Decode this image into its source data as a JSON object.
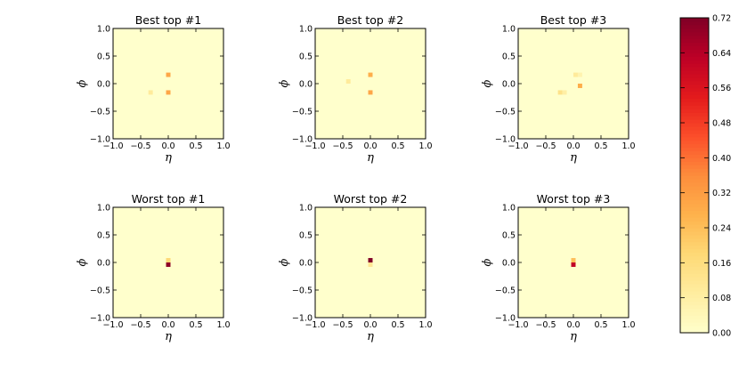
{
  "chart_data": {
    "type": "heatmap",
    "colormap": "YlOrRd",
    "colorbar": {
      "range": [
        0.0,
        0.72
      ],
      "ticks": [
        "0.00",
        "0.08",
        "0.16",
        "0.24",
        "0.32",
        "0.40",
        "0.48",
        "0.56",
        "0.64",
        "0.72"
      ]
    },
    "panels": [
      {
        "title": "Best top #1",
        "xlabel": "η",
        "ylabel": "ϕ",
        "xlim": [
          -1.0,
          1.0
        ],
        "ylim": [
          -1.0,
          1.0
        ],
        "xticks": [
          "−1.0",
          "−0.5",
          "0.0",
          "0.5",
          "1.0"
        ],
        "yticks": [
          "−1.0",
          "−0.5",
          "0.0",
          "0.5",
          "1.0"
        ],
        "cells": [
          {
            "eta": 0.0,
            "phi": 0.16,
            "value": 0.3
          },
          {
            "eta": 0.0,
            "phi": -0.16,
            "value": 0.3
          },
          {
            "eta": -0.32,
            "phi": -0.16,
            "value": 0.1
          }
        ]
      },
      {
        "title": "Best top #2",
        "xlabel": "η",
        "ylabel": "ϕ",
        "xlim": [
          -1.0,
          1.0
        ],
        "ylim": [
          -1.0,
          1.0
        ],
        "xticks": [
          "−1.0",
          "−0.5",
          "0.0",
          "0.5",
          "1.0"
        ],
        "yticks": [
          "−1.0",
          "−0.5",
          "0.0",
          "0.5",
          "1.0"
        ],
        "cells": [
          {
            "eta": 0.0,
            "phi": 0.16,
            "value": 0.28
          },
          {
            "eta": 0.0,
            "phi": -0.16,
            "value": 0.3
          },
          {
            "eta": -0.4,
            "phi": 0.04,
            "value": 0.1
          }
        ]
      },
      {
        "title": "Best top #3",
        "xlabel": "η",
        "ylabel": "ϕ",
        "xlim": [
          -1.0,
          1.0
        ],
        "ylim": [
          -1.0,
          1.0
        ],
        "xticks": [
          "−1.0",
          "−0.5",
          "0.0",
          "0.5",
          "1.0"
        ],
        "yticks": [
          "−1.0",
          "−0.5",
          "0.0",
          "0.5",
          "1.0"
        ],
        "cells": [
          {
            "eta": 0.04,
            "phi": 0.16,
            "value": 0.1
          },
          {
            "eta": 0.12,
            "phi": 0.16,
            "value": 0.06
          },
          {
            "eta": 0.12,
            "phi": -0.04,
            "value": 0.28
          },
          {
            "eta": -0.24,
            "phi": -0.16,
            "value": 0.14
          },
          {
            "eta": -0.16,
            "phi": -0.16,
            "value": 0.08
          }
        ]
      },
      {
        "title": "Worst top #1",
        "xlabel": "η",
        "ylabel": "ϕ",
        "xlim": [
          -1.0,
          1.0
        ],
        "ylim": [
          -1.0,
          1.0
        ],
        "xticks": [
          "−1.0",
          "−0.5",
          "0.0",
          "0.5",
          "1.0"
        ],
        "yticks": [
          "−1.0",
          "−0.5",
          "0.0",
          "0.5",
          "1.0"
        ],
        "cells": [
          {
            "eta": 0.0,
            "phi": 0.04,
            "value": 0.18
          },
          {
            "eta": 0.0,
            "phi": -0.04,
            "value": 0.7
          }
        ]
      },
      {
        "title": "Worst top #2",
        "xlabel": "η",
        "ylabel": "ϕ",
        "xlim": [
          -1.0,
          1.0
        ],
        "ylim": [
          -1.0,
          1.0
        ],
        "xticks": [
          "−1.0",
          "−0.5",
          "0.0",
          "0.5",
          "1.0"
        ],
        "yticks": [
          "−1.0",
          "−0.5",
          "0.0",
          "0.5",
          "1.0"
        ],
        "cells": [
          {
            "eta": 0.0,
            "phi": 0.04,
            "value": 0.72
          },
          {
            "eta": 0.0,
            "phi": -0.04,
            "value": 0.12
          }
        ]
      },
      {
        "title": "Worst top #3",
        "xlabel": "η",
        "ylabel": "ϕ",
        "xlim": [
          -1.0,
          1.0
        ],
        "ylim": [
          -1.0,
          1.0
        ],
        "xticks": [
          "−1.0",
          "−0.5",
          "0.0",
          "0.5",
          "1.0"
        ],
        "yticks": [
          "−1.0",
          "−0.5",
          "0.0",
          "0.5",
          "1.0"
        ],
        "cells": [
          {
            "eta": 0.0,
            "phi": 0.04,
            "value": 0.24
          },
          {
            "eta": 0.0,
            "phi": -0.04,
            "value": 0.62
          }
        ]
      }
    ]
  }
}
